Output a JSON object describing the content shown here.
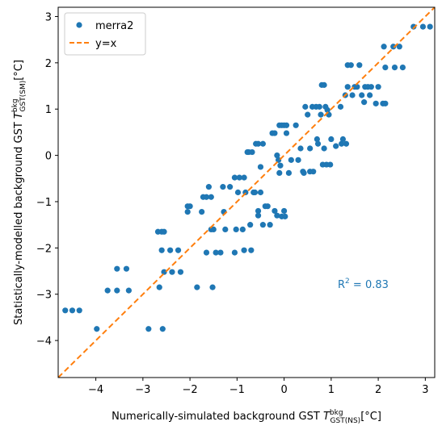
{
  "chart_data": {
    "type": "scatter",
    "xlabel_main": "Numerically-simulated background GST",
    "xlabel_sym": "T",
    "xlabel_sup": "bkg",
    "xlabel_sub": "GST(NS)",
    "xlabel_unit": "[°C]",
    "ylabel_main": "Statistically-modelled background GST",
    "ylabel_sym": "T",
    "ylabel_sup": "bkg",
    "ylabel_sub": "GST(SM)",
    "ylabel_unit": "[°C]",
    "xlim": [
      -4.8,
      3.2
    ],
    "ylim": [
      -4.8,
      3.2
    ],
    "xticks": [
      -4,
      -3,
      -2,
      -1,
      0,
      1,
      2,
      3
    ],
    "yticks": [
      -4,
      -3,
      -2,
      -1,
      0,
      1,
      2,
      3
    ],
    "xtick_labels": [
      "−4",
      "−3",
      "−2",
      "−1",
      "0",
      "1",
      "2",
      "3"
    ],
    "ytick_labels": [
      "−4",
      "−3",
      "−2",
      "−1",
      "0",
      "1",
      "2",
      "3"
    ],
    "legend_position": "top-left",
    "annotation_prefix": "R",
    "annotation_sup": "2",
    "annotation_suffix": " = 0.83",
    "annotation_color": "#1f77b4",
    "series": [
      {
        "name": "merra2",
        "kind": "scatter",
        "color": "#1f77b4",
        "points": [
          [
            -4.65,
            -3.35
          ],
          [
            -4.5,
            -3.35
          ],
          [
            -4.35,
            -3.35
          ],
          [
            -3.98,
            -3.75
          ],
          [
            -3.75,
            -2.92
          ],
          [
            -3.55,
            -2.92
          ],
          [
            -3.55,
            -2.45
          ],
          [
            -3.35,
            -2.45
          ],
          [
            -3.3,
            -2.92
          ],
          [
            -2.88,
            -3.75
          ],
          [
            -2.65,
            -2.85
          ],
          [
            -2.58,
            -3.75
          ],
          [
            -2.68,
            -1.65
          ],
          [
            -2.6,
            -1.65
          ],
          [
            -2.55,
            -1.65
          ],
          [
            -2.6,
            -2.05
          ],
          [
            -2.55,
            -2.52
          ],
          [
            -2.42,
            -2.05
          ],
          [
            -2.38,
            -2.52
          ],
          [
            -2.25,
            -2.05
          ],
          [
            -2.2,
            -2.52
          ],
          [
            -2.05,
            -1.1
          ],
          [
            -2.0,
            -1.1
          ],
          [
            -2.05,
            -1.22
          ],
          [
            -1.85,
            -2.85
          ],
          [
            -1.75,
            -1.22
          ],
          [
            -1.72,
            -0.9
          ],
          [
            -1.65,
            -2.1
          ],
          [
            -1.65,
            -0.9
          ],
          [
            -1.6,
            -0.68
          ],
          [
            -1.55,
            -1.6
          ],
          [
            -1.55,
            -0.9
          ],
          [
            -1.52,
            -2.85
          ],
          [
            -1.5,
            -1.6
          ],
          [
            -1.45,
            -2.1
          ],
          [
            -1.35,
            -2.1
          ],
          [
            -1.3,
            -0.68
          ],
          [
            -1.28,
            -1.22
          ],
          [
            -1.25,
            -1.6
          ],
          [
            -1.15,
            -0.68
          ],
          [
            -1.05,
            -2.1
          ],
          [
            -1.05,
            -0.48
          ],
          [
            -1.02,
            -1.6
          ],
          [
            -0.98,
            -0.8
          ],
          [
            -0.95,
            -0.48
          ],
          [
            -0.88,
            -1.6
          ],
          [
            -0.85,
            -2.05
          ],
          [
            -0.85,
            -0.48
          ],
          [
            -0.82,
            -0.8
          ],
          [
            -0.78,
            0.07
          ],
          [
            -0.75,
            0.07
          ],
          [
            -0.72,
            -1.5
          ],
          [
            -0.7,
            -2.05
          ],
          [
            -0.68,
            0.07
          ],
          [
            -0.65,
            -0.8
          ],
          [
            -0.62,
            -0.8
          ],
          [
            -0.6,
            0.25
          ],
          [
            -0.55,
            0.25
          ],
          [
            -0.55,
            -1.2
          ],
          [
            -0.55,
            -1.3
          ],
          [
            -0.5,
            -0.8
          ],
          [
            -0.5,
            -0.25
          ],
          [
            -0.45,
            0.25
          ],
          [
            -0.45,
            -1.5
          ],
          [
            -0.4,
            -1.1
          ],
          [
            -0.35,
            -1.1
          ],
          [
            -0.3,
            -1.5
          ],
          [
            -0.25,
            0.48
          ],
          [
            -0.2,
            0.48
          ],
          [
            -0.2,
            -1.2
          ],
          [
            -0.15,
            -1.3
          ],
          [
            -0.15,
            0.0
          ],
          [
            -0.12,
            -0.1
          ],
          [
            -0.1,
            -0.38
          ],
          [
            -0.1,
            0.65
          ],
          [
            -0.08,
            -0.22
          ],
          [
            -0.05,
            0.65
          ],
          [
            -0.05,
            -1.32
          ],
          [
            0.0,
            0.65
          ],
          [
            0.0,
            -1.2
          ],
          [
            0.02,
            -1.32
          ],
          [
            0.05,
            0.48
          ],
          [
            0.05,
            0.65
          ],
          [
            0.1,
            -0.38
          ],
          [
            0.15,
            -0.1
          ],
          [
            0.25,
            0.65
          ],
          [
            0.3,
            -0.1
          ],
          [
            0.35,
            0.15
          ],
          [
            0.4,
            -0.35
          ],
          [
            0.42,
            -0.38
          ],
          [
            0.45,
            1.05
          ],
          [
            0.5,
            0.88
          ],
          [
            0.55,
            0.15
          ],
          [
            0.55,
            -0.35
          ],
          [
            0.6,
            1.05
          ],
          [
            0.62,
            -0.35
          ],
          [
            0.68,
            1.05
          ],
          [
            0.7,
            0.35
          ],
          [
            0.72,
            0.25
          ],
          [
            0.75,
            1.05
          ],
          [
            0.78,
            0.88
          ],
          [
            0.8,
            1.52
          ],
          [
            0.82,
            -0.2
          ],
          [
            0.85,
            1.52
          ],
          [
            0.85,
            0.15
          ],
          [
            0.88,
            1.05
          ],
          [
            0.9,
            -0.2
          ],
          [
            0.92,
            0.98
          ],
          [
            0.95,
            0.88
          ],
          [
            0.98,
            -0.2
          ],
          [
            1.0,
            0.35
          ],
          [
            1.1,
            0.2
          ],
          [
            1.2,
            1.05
          ],
          [
            1.22,
            0.25
          ],
          [
            1.25,
            0.35
          ],
          [
            1.3,
            1.3
          ],
          [
            1.32,
            0.25
          ],
          [
            1.35,
            1.48
          ],
          [
            1.35,
            1.95
          ],
          [
            1.42,
            1.95
          ],
          [
            1.45,
            1.3
          ],
          [
            1.5,
            1.48
          ],
          [
            1.55,
            1.48
          ],
          [
            1.6,
            1.95
          ],
          [
            1.65,
            1.3
          ],
          [
            1.7,
            1.15
          ],
          [
            1.72,
            1.48
          ],
          [
            1.78,
            1.48
          ],
          [
            1.82,
            1.3
          ],
          [
            1.85,
            1.48
          ],
          [
            1.95,
            1.12
          ],
          [
            2.0,
            1.48
          ],
          [
            2.1,
            1.12
          ],
          [
            2.12,
            2.35
          ],
          [
            2.15,
            1.12
          ],
          [
            2.15,
            1.9
          ],
          [
            2.32,
            2.35
          ],
          [
            2.35,
            1.9
          ],
          [
            2.45,
            2.35
          ],
          [
            2.52,
            1.9
          ],
          [
            2.75,
            2.78
          ],
          [
            2.95,
            2.78
          ],
          [
            3.1,
            2.78
          ]
        ]
      },
      {
        "name": "y=x",
        "kind": "line",
        "color": "#ff7f0e",
        "x": [
          -4.8,
          3.2
        ],
        "y": [
          -4.8,
          3.2
        ]
      }
    ]
  }
}
